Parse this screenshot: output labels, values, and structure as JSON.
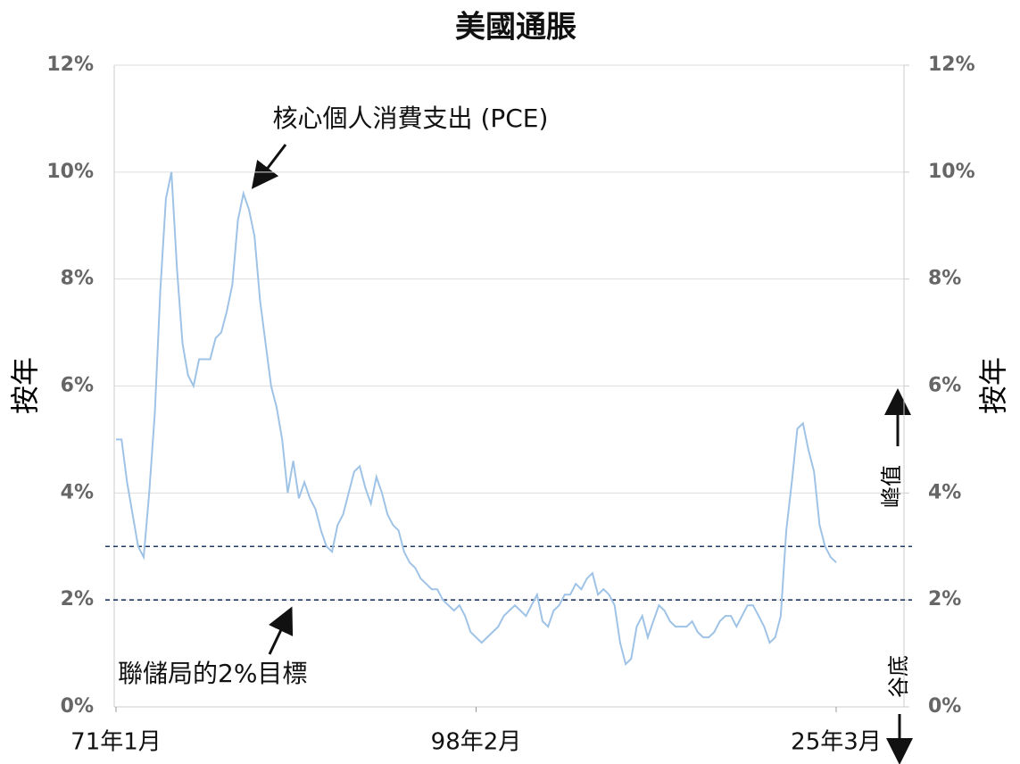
{
  "chart_data": {
    "type": "line",
    "title": "美國通脹",
    "ylabel": "按年",
    "y2label": "按年",
    "ylim": [
      0,
      12
    ],
    "y2lim": [
      0,
      12
    ],
    "yticks": [
      {
        "value": 0,
        "label": "0%"
      },
      {
        "value": 2,
        "label": "2%"
      },
      {
        "value": 4,
        "label": "4%"
      },
      {
        "value": 6,
        "label": "6%"
      },
      {
        "value": 8,
        "label": "8%"
      },
      {
        "value": 10,
        "label": "10%"
      },
      {
        "value": 12,
        "label": "12%"
      }
    ],
    "y2ticks": [
      {
        "value": 0,
        "label": "0%"
      },
      {
        "value": 2,
        "label": "2%"
      },
      {
        "value": 4,
        "label": "4%"
      },
      {
        "value": 6,
        "label": "6%"
      },
      {
        "value": 8,
        "label": "8%"
      },
      {
        "value": 10,
        "label": "10%"
      },
      {
        "value": 12,
        "label": "12%"
      }
    ],
    "grid": true,
    "categories": [
      "71年1月",
      null,
      null,
      null,
      null,
      null,
      null,
      null,
      null,
      null,
      null,
      null,
      null,
      null,
      null,
      null,
      null,
      null,
      null,
      null,
      null,
      null,
      null,
      null,
      null,
      null,
      null,
      null,
      null,
      null,
      null,
      null,
      null,
      null,
      null,
      null,
      null,
      null,
      null,
      null,
      null,
      null,
      null,
      null,
      null,
      null,
      null,
      null,
      null,
      null,
      null,
      null,
      null,
      null,
      null,
      null,
      null,
      null,
      null,
      null,
      null,
      null,
      null,
      null,
      null,
      "98年2月",
      null,
      null,
      null,
      null,
      null,
      null,
      null,
      null,
      null,
      null,
      null,
      null,
      null,
      null,
      null,
      null,
      null,
      null,
      null,
      null,
      null,
      null,
      null,
      null,
      null,
      null,
      null,
      null,
      null,
      null,
      null,
      null,
      null,
      null,
      null,
      null,
      null,
      null,
      null,
      null,
      null,
      null,
      null,
      null,
      null,
      null,
      null,
      null,
      null,
      null,
      null,
      null,
      null,
      null,
      null,
      null,
      null,
      null,
      null,
      null,
      null,
      null,
      null,
      null,
      "25年3月"
    ],
    "series": [
      {
        "name": "核心個人消費支出 (PCE)",
        "color": "#9fc3e6",
        "values": [
          5.0,
          5.0,
          4.2,
          3.6,
          3.0,
          2.8,
          4.0,
          5.5,
          7.8,
          9.5,
          10.0,
          8.2,
          6.8,
          6.2,
          6.0,
          6.5,
          6.5,
          6.5,
          6.9,
          7.0,
          7.4,
          7.9,
          9.1,
          9.6,
          9.3,
          8.8,
          7.6,
          6.8,
          6.0,
          5.6,
          5.0,
          4.0,
          4.6,
          3.9,
          4.2,
          3.9,
          3.7,
          3.3,
          3.0,
          2.9,
          3.4,
          3.6,
          4.0,
          4.4,
          4.5,
          4.1,
          3.8,
          4.3,
          4.0,
          3.6,
          3.4,
          3.3,
          2.9,
          2.7,
          2.6,
          2.4,
          2.3,
          2.2,
          2.2,
          2.0,
          1.9,
          1.8,
          1.9,
          1.7,
          1.4,
          1.3,
          1.2,
          1.3,
          1.4,
          1.5,
          1.7,
          1.8,
          1.9,
          1.8,
          1.7,
          1.9,
          2.1,
          1.6,
          1.5,
          1.8,
          1.9,
          2.1,
          2.1,
          2.3,
          2.2,
          2.4,
          2.5,
          2.1,
          2.2,
          2.1,
          1.9,
          1.2,
          0.8,
          0.9,
          1.5,
          1.7,
          1.3,
          1.6,
          1.9,
          1.8,
          1.6,
          1.5,
          1.5,
          1.5,
          1.6,
          1.4,
          1.3,
          1.3,
          1.4,
          1.6,
          1.7,
          1.7,
          1.5,
          1.7,
          1.9,
          1.9,
          1.7,
          1.5,
          1.2,
          1.3,
          1.7,
          3.3,
          4.2,
          5.2,
          5.3,
          4.8,
          4.4,
          3.4,
          3.0,
          2.8,
          2.7
        ]
      }
    ],
    "reference_lines": [
      {
        "value": 3
      },
      {
        "value": 2,
        "label": "聯儲局的2%目標"
      }
    ],
    "annotations": {
      "peak": "峰值",
      "trough": "谷底"
    }
  }
}
